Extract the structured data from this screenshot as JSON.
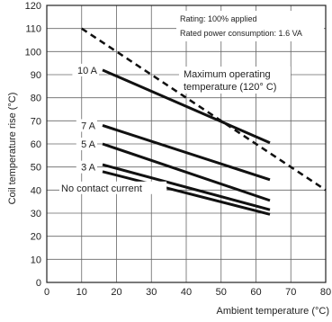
{
  "chart_data": {
    "type": "line",
    "xlabel": "Ambient temperature (°C)",
    "ylabel": "Coil temperature rise (°C)",
    "xlim": [
      0,
      80
    ],
    "ylim": [
      0,
      120
    ],
    "xticks": [
      0,
      10,
      20,
      30,
      40,
      50,
      60,
      70,
      80
    ],
    "yticks": [
      0,
      10,
      20,
      30,
      40,
      50,
      60,
      70,
      80,
      90,
      100,
      110,
      120
    ],
    "grid": true,
    "notes": [
      "Rating: 100% applied",
      "Rated power consumption: 1.6 VA"
    ],
    "series": [
      {
        "name": "10 A",
        "x": [
          16,
          64
        ],
        "y": [
          92,
          60.5
        ]
      },
      {
        "name": "7 A",
        "x": [
          16,
          64
        ],
        "y": [
          68,
          44.5
        ]
      },
      {
        "name": "5 A",
        "x": [
          16,
          64
        ],
        "y": [
          60,
          35.5
        ]
      },
      {
        "name": "3 A",
        "x": [
          16,
          64
        ],
        "y": [
          51,
          31.5
        ]
      },
      {
        "name": "No contact current",
        "x": [
          16,
          64
        ],
        "y": [
          48,
          29.5
        ]
      }
    ],
    "limit_line": {
      "label_line1": "Maximum operating",
      "label_line2": "temperature (120° C)",
      "x": [
        10,
        80
      ],
      "y": [
        110,
        40
      ]
    }
  }
}
